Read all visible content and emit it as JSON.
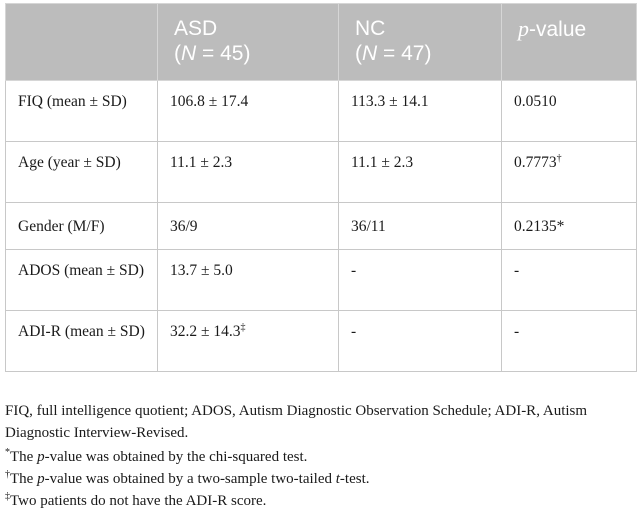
{
  "table": {
    "headers": {
      "col0": "",
      "asd_label": "ASD",
      "asd_n_open": "(",
      "asd_n_var": "N",
      "asd_n_rest": " = 45)",
      "nc_label": "NC",
      "nc_n_open": "(",
      "nc_n_var": "N",
      "nc_n_rest": " = 47)",
      "pvalue_p": "p",
      "pvalue_rest": "-value"
    },
    "rows": [
      {
        "label": "FIQ (mean ± SD)",
        "asd": "106.8 ± 17.4",
        "asd_sup": "",
        "nc": "113.3 ± 14.1",
        "p": "0.0510",
        "p_sup": ""
      },
      {
        "label": "Age (year ± SD)",
        "asd": "11.1 ± 2.3",
        "asd_sup": "",
        "nc": "11.1 ± 2.3",
        "p": "0.7773",
        "p_sup": "†"
      },
      {
        "label": "Gender (M/F)",
        "asd": "36/9",
        "asd_sup": "",
        "nc": "36/11",
        "p": "0.2135*",
        "p_sup": ""
      },
      {
        "label": "ADOS (mean ± SD)",
        "asd": "13.7 ± 5.0",
        "asd_sup": "",
        "nc": "-",
        "p": "-",
        "p_sup": ""
      },
      {
        "label": "ADI-R (mean ± SD)",
        "asd": "32.2 ± 14.3",
        "asd_sup": "‡",
        "nc": "-",
        "p": "-",
        "p_sup": ""
      }
    ]
  },
  "notes": {
    "abbreviations": "FIQ, full intelligence quotient; ADOS, Autism Diagnostic Observation Schedule; ADI-R, Autism Diagnostic Interview-Revised.",
    "note1_mark": "*",
    "note1_pre": "The ",
    "note1_italic": "p",
    "note1_post": "-value was obtained by the chi-squared test.",
    "note2_mark": "†",
    "note2_pre": "The ",
    "note2_italic": "p",
    "note2_mid": "-value was obtained by a two-sample two-tailed ",
    "note2_italic2": "t",
    "note2_post": "-test.",
    "note3_mark": "‡",
    "note3_text": "Two patients do not have the ADI-R score."
  }
}
